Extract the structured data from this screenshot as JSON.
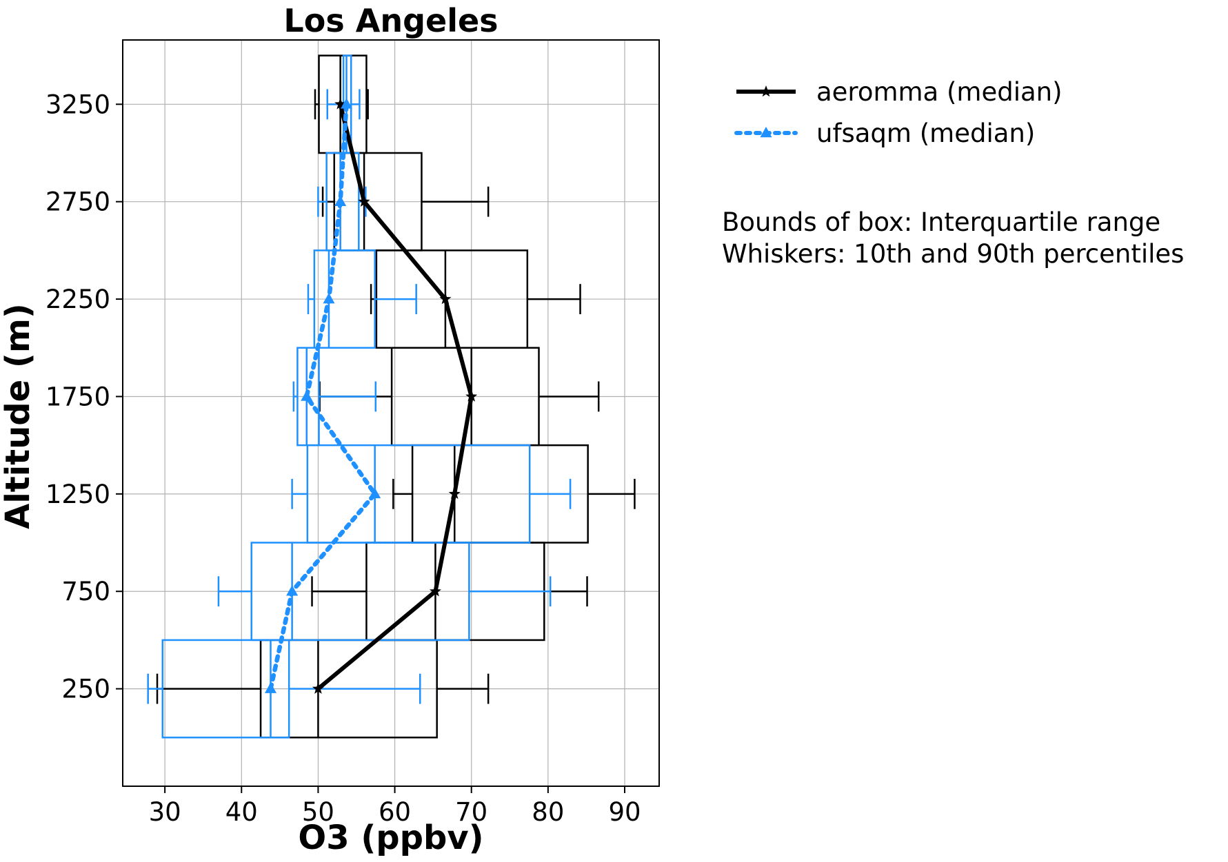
{
  "chart_data": {
    "type": "boxplot",
    "orientation": "horizontal",
    "title": "Los Angeles",
    "xlabel": "O3 (ppbv)",
    "ylabel": "Altitude (m)",
    "xlim": [
      24.5,
      94.5
    ],
    "ylim": [
      -250,
      3580
    ],
    "xticks": [
      30,
      40,
      50,
      60,
      70,
      80,
      90
    ],
    "yticks": [
      250,
      750,
      1250,
      1750,
      2250,
      2750,
      3250
    ],
    "grid": true,
    "box_height": 500,
    "series": [
      {
        "name": "aeromma (median)",
        "color": "#000000",
        "line_style": "solid",
        "marker": "star",
        "data": [
          {
            "altitude": 250,
            "p10": 29.0,
            "q1": 42.5,
            "median": 50.0,
            "q3": 65.5,
            "p90": 72.2
          },
          {
            "altitude": 750,
            "p10": 49.2,
            "q1": 56.3,
            "median": 65.3,
            "q3": 79.5,
            "p90": 85.1
          },
          {
            "altitude": 1250,
            "p10": 59.8,
            "q1": 62.3,
            "median": 67.8,
            "q3": 85.2,
            "p90": 91.3
          },
          {
            "altitude": 1750,
            "p10": 50.2,
            "q1": 59.6,
            "median": 70.0,
            "q3": 78.8,
            "p90": 86.6
          },
          {
            "altitude": 2250,
            "p10": 56.9,
            "q1": 57.6,
            "median": 66.6,
            "q3": 77.3,
            "p90": 84.2
          },
          {
            "altitude": 2750,
            "p10": 50.6,
            "q1": 52.1,
            "median": 56.0,
            "q3": 63.5,
            "p90": 72.2
          },
          {
            "altitude": 3250,
            "p10": 49.6,
            "q1": 50.1,
            "median": 52.9,
            "q3": 56.3,
            "p90": 56.5
          }
        ]
      },
      {
        "name": "ufsaqm (median)",
        "color": "#1e90ff",
        "line_style": "dotted",
        "marker": "triangle",
        "data": [
          {
            "altitude": 250,
            "p10": 27.8,
            "q1": 29.7,
            "median": 43.8,
            "q3": 46.2,
            "p90": 63.3
          },
          {
            "altitude": 750,
            "p10": 37.0,
            "q1": 41.3,
            "median": 46.6,
            "q3": 69.7,
            "p90": 80.3
          },
          {
            "altitude": 1250,
            "p10": 46.6,
            "q1": 48.6,
            "median": 57.4,
            "q3": 77.6,
            "p90": 82.9
          },
          {
            "altitude": 1750,
            "p10": 46.8,
            "q1": 47.3,
            "median": 48.5,
            "q3": 50.1,
            "p90": 57.5
          },
          {
            "altitude": 2250,
            "p10": 48.7,
            "q1": 49.5,
            "median": 51.4,
            "q3": 57.4,
            "p90": 62.8
          },
          {
            "altitude": 2750,
            "p10": 50.0,
            "q1": 51.1,
            "median": 52.9,
            "q3": 55.3,
            "p90": 56.2
          },
          {
            "altitude": 3250,
            "p10": 51.2,
            "q1": 53.3,
            "median": 53.7,
            "q3": 54.3,
            "p90": 55.4
          }
        ]
      }
    ],
    "legend_placement": "upper-right-outside",
    "annotation_lines": [
      "Bounds of box: Interquartile range",
      "Whiskers: 10th and 90th percentiles"
    ]
  }
}
